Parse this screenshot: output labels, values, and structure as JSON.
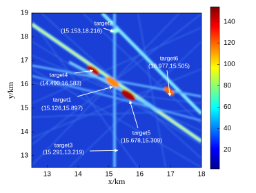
{
  "chart_data": {
    "type": "heatmap",
    "xlabel": "x/km",
    "ylabel": "y/km",
    "xlim": [
      12.5,
      18
    ],
    "xticks": [
      13,
      14,
      15,
      16,
      17,
      18
    ],
    "ylim": [
      12.5,
      19
    ],
    "yticks": [
      13,
      14,
      15,
      16,
      17,
      18,
      19
    ],
    "clim": [
      2,
      154
    ],
    "cticks": [
      20,
      40,
      60,
      80,
      100,
      120,
      140
    ],
    "colormap": "jet",
    "annotations": [
      {
        "label": "target1",
        "text": "(15.126,15.897)",
        "x": 15.126,
        "y": 15.897
      },
      {
        "label": "target2",
        "text": "(15.153,18.216)",
        "x": 15.153,
        "y": 18.216
      },
      {
        "label": "target3",
        "text": "(15.291,13.219)",
        "x": 15.291,
        "y": 13.219
      },
      {
        "label": "target4",
        "text": "(14.490,16.583)",
        "x": 14.49,
        "y": 16.583
      },
      {
        "label": "target5",
        "text": "(15.678,15.309)",
        "x": 15.678,
        "y": 15.309
      },
      {
        "label": "target6",
        "text": "(16.977,15.505)",
        "x": 16.977,
        "y": 15.505
      }
    ]
  }
}
